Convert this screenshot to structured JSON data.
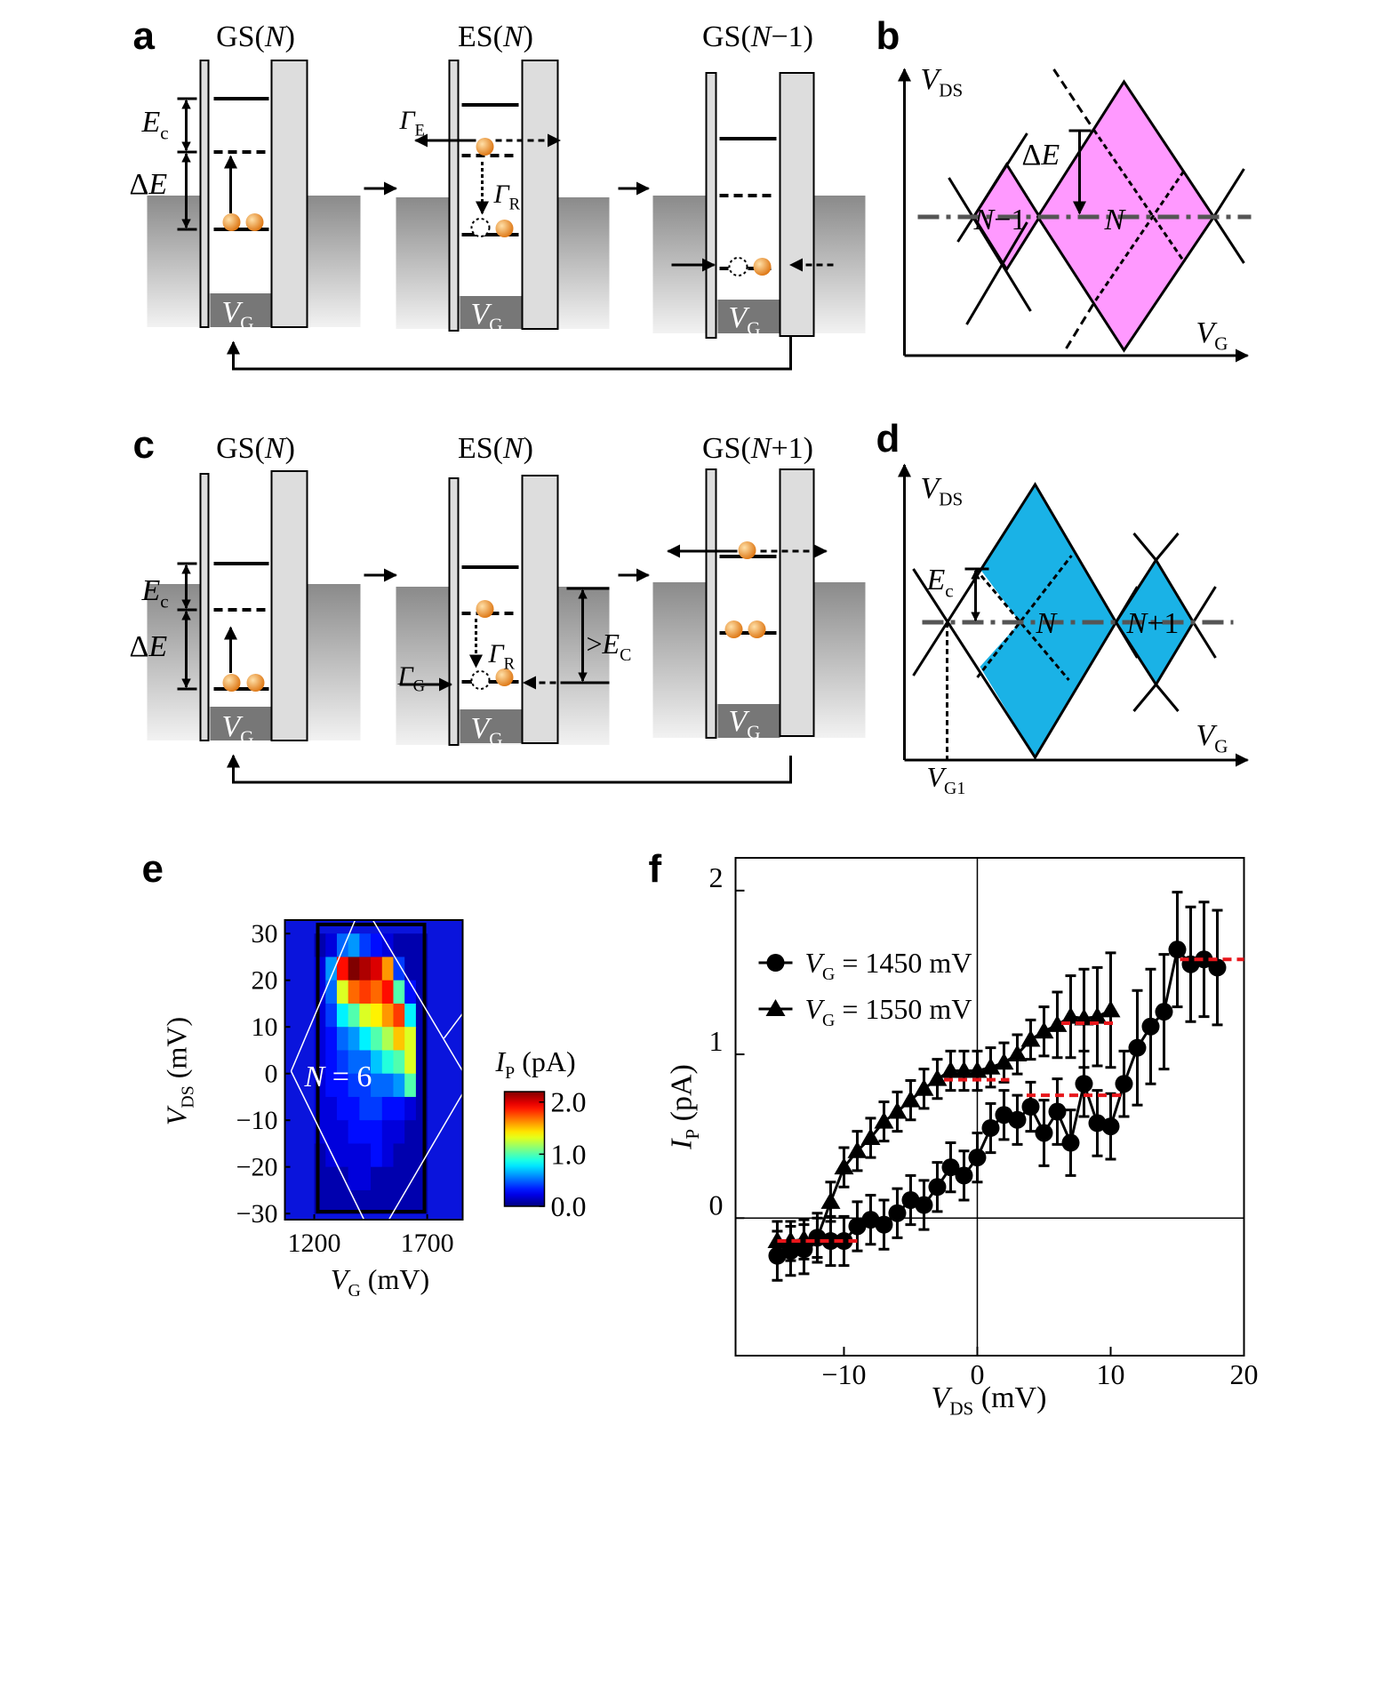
{
  "panel_a": {
    "label": "a",
    "states": [
      {
        "pre": "GS(",
        "it": "N",
        "post": ")"
      },
      {
        "pre": "ES(",
        "it": "N",
        "post": ")"
      },
      {
        "pre": "GS(",
        "it": "N",
        "post": "−1)"
      }
    ],
    "charging_energy": {
      "it": "E",
      "sub": "c"
    },
    "level_spacing": {
      "pre": "Δ",
      "it": "E"
    },
    "gamma_E": {
      "it": "Γ",
      "sub": "E"
    },
    "gamma_R": {
      "it": "Γ",
      "sub": "R"
    },
    "gate": {
      "it": "V",
      "sub": "G"
    }
  },
  "panel_b": {
    "label": "b",
    "y_axis": {
      "it": "V",
      "sub": "DS"
    },
    "x_axis": {
      "it": "V",
      "sub": "G"
    },
    "level_spacing": {
      "pre": "Δ",
      "it": "E"
    },
    "left_state": {
      "it": "N",
      "post": "−1"
    },
    "right_state": {
      "it": "N"
    },
    "fill": "#ff99ff"
  },
  "panel_c": {
    "label": "c",
    "states": [
      {
        "pre": "GS(",
        "it": "N",
        "post": ")"
      },
      {
        "pre": "ES(",
        "it": "N",
        "post": ")"
      },
      {
        "pre": "GS(",
        "it": "N",
        "post": "+1)"
      }
    ],
    "charging_energy": {
      "it": "E",
      "sub": "c"
    },
    "level_spacing": {
      "pre": "Δ",
      "it": "E"
    },
    "gamma_G": {
      "it": "Γ",
      "sub": "G"
    },
    "gamma_R": {
      "it": "Γ",
      "sub": "R"
    },
    "threshold": {
      "pre": ">",
      "it": "E",
      "sub": "C"
    },
    "gate": {
      "it": "V",
      "sub": "G"
    }
  },
  "panel_d": {
    "label": "d",
    "y_axis": {
      "it": "V",
      "sub": "DS"
    },
    "x_axis": {
      "it": "V",
      "sub": "G"
    },
    "charging_energy": {
      "it": "E",
      "sub": "c"
    },
    "left_state": {
      "it": "N"
    },
    "right_state": {
      "it": "N",
      "post": "+1"
    },
    "gate_value": {
      "it": "V",
      "sub": "G1"
    },
    "fill": "#1ab2e6"
  },
  "chart_data": [
    {
      "type": "heatmap",
      "label": "e",
      "x_label": {
        "it": "V",
        "sub": "G",
        "post": " (mV)"
      },
      "y_label": {
        "it": "V",
        "sub": "DS",
        "post": " (mV)"
      },
      "xlim": [
        1070,
        1857
      ],
      "ylim": [
        -31.3,
        32.9
      ],
      "xticks": [
        1200,
        1700
      ],
      "yticks": [
        30,
        20,
        10,
        0,
        {
          "value": -10,
          "label": "−10"
        },
        {
          "value": -20,
          "label": "−20"
        },
        {
          "value": -30,
          "label": "−30"
        }
      ],
      "x_edges": [
        1200,
        1250,
        1300,
        1350,
        1400,
        1450,
        1500,
        1550,
        1600,
        1650,
        1700
      ],
      "y_edges": [
        30,
        25,
        20,
        15,
        10,
        5,
        0,
        -5,
        -10,
        -15,
        -20,
        -25,
        -30
      ],
      "z": [
        [
          0.1,
          0.2,
          0.5,
          0.6,
          0.4,
          0.3,
          0.2,
          0.1,
          0.1,
          0.1
        ],
        [
          0.2,
          0.6,
          1.9,
          2.2,
          2.1,
          2.0,
          1.6,
          0.4,
          0.1,
          0.1
        ],
        [
          0.2,
          0.5,
          1.3,
          1.7,
          1.8,
          1.7,
          1.9,
          1.0,
          0.3,
          0.1
        ],
        [
          0.2,
          0.4,
          0.8,
          1.0,
          1.3,
          1.4,
          1.6,
          1.8,
          0.8,
          0.1
        ],
        [
          0.2,
          0.3,
          0.5,
          0.6,
          0.8,
          1.0,
          1.2,
          1.5,
          1.3,
          0.1
        ],
        [
          0.2,
          0.3,
          0.4,
          0.5,
          0.5,
          0.7,
          0.9,
          1.0,
          1.3,
          0.1
        ],
        [
          0.2,
          0.3,
          0.3,
          0.4,
          0.4,
          0.5,
          0.5,
          0.6,
          1.0,
          0.1
        ],
        [
          0.2,
          0.2,
          0.3,
          0.3,
          0.4,
          0.4,
          0.3,
          0.3,
          0.2,
          0.1
        ],
        [
          0.2,
          0.2,
          0.2,
          0.3,
          0.3,
          0.3,
          0.2,
          0.2,
          0.1,
          0.1
        ],
        [
          0.1,
          0.2,
          0.2,
          0.2,
          0.2,
          0.3,
          0.2,
          0.1,
          0.1,
          0.1
        ],
        [
          0.1,
          0.1,
          0.1,
          0.2,
          0.2,
          0.1,
          0.1,
          0.1,
          0.1,
          0.1
        ],
        [
          0.1,
          0.1,
          0.1,
          0.1,
          0.1,
          0.1,
          0.1,
          0.1,
          0.1,
          0.1
        ]
      ],
      "background": "#0a14dc",
      "annotation": {
        "it": "N",
        "post": " = 6"
      },
      "colorbar": {
        "label": {
          "it": "I",
          "sub": "P",
          "post": " (pA)"
        },
        "lim": [
          0,
          2.2
        ],
        "colormap": "jet",
        "ticks": [
          {
            "value": 0,
            "label": "0.0"
          },
          {
            "value": 1,
            "label": "1.0"
          },
          {
            "value": 2,
            "label": "2.0"
          }
        ]
      }
    },
    {
      "type": "scatter",
      "label": "f",
      "x_label": {
        "it": "V",
        "sub": "DS",
        "post": " (mV)"
      },
      "y_label": {
        "it": "I",
        "sub": "P",
        "post": " (pA)"
      },
      "xlim": [
        -18.13,
        20
      ],
      "ylim": [
        -0.84,
        2.2
      ],
      "xticks": [
        {
          "value": -10,
          "label": "−10"
        },
        0,
        10,
        20
      ],
      "yticks": [
        0,
        1,
        2
      ],
      "zero_lines": true,
      "series": [
        {
          "name": {
            "it": "V",
            "sub": "G",
            "post": " = 1450 mV"
          },
          "marker": "circle",
          "color": "#000000",
          "x": [
            -15,
            -14,
            -13,
            -12,
            -11,
            -10,
            -9,
            -8,
            -7,
            -6,
            -5,
            -4,
            -3,
            -2,
            -1,
            0,
            1,
            2,
            3,
            4,
            5,
            6,
            7,
            8,
            9,
            10,
            11,
            12,
            13,
            14,
            15,
            16,
            17,
            18
          ],
          "values": [
            -0.23,
            -0.2,
            -0.19,
            -0.12,
            -0.14,
            -0.14,
            -0.05,
            -0.01,
            -0.04,
            0.03,
            0.11,
            0.08,
            0.19,
            0.31,
            0.26,
            0.37,
            0.55,
            0.63,
            0.6,
            0.68,
            0.52,
            0.65,
            0.46,
            0.82,
            0.58,
            0.56,
            0.82,
            1.04,
            1.17,
            1.26,
            1.64,
            1.55,
            1.58,
            1.53
          ],
          "errors": [
            0.15,
            0.15,
            0.15,
            0.15,
            0.15,
            0.15,
            0.15,
            0.15,
            0.15,
            0.15,
            0.15,
            0.15,
            0.15,
            0.15,
            0.15,
            0.15,
            0.15,
            0.15,
            0.15,
            0.15,
            0.2,
            0.2,
            0.2,
            0.2,
            0.2,
            0.2,
            0.2,
            0.35,
            0.35,
            0.35,
            0.35,
            0.35,
            0.35,
            0.35
          ]
        },
        {
          "name": {
            "it": "V",
            "sub": "G",
            "post": " = 1550 mV"
          },
          "marker": "triangle",
          "color": "#000000",
          "x": [
            -15,
            -14,
            -13,
            -12,
            -11,
            -10,
            -9,
            -8,
            -7,
            -6,
            -5,
            -4,
            -3,
            -2,
            -1,
            0,
            1,
            2,
            3,
            4,
            5,
            6,
            7,
            8,
            9,
            10
          ],
          "values": [
            -0.14,
            -0.14,
            -0.13,
            -0.12,
            0.1,
            0.31,
            0.41,
            0.49,
            0.59,
            0.65,
            0.72,
            0.79,
            0.85,
            0.9,
            0.9,
            0.9,
            0.92,
            0.95,
            1.0,
            1.09,
            1.14,
            1.18,
            1.23,
            1.22,
            1.23,
            1.27
          ],
          "errors": [
            0.12,
            0.12,
            0.12,
            0.12,
            0.12,
            0.12,
            0.12,
            0.12,
            0.12,
            0.12,
            0.12,
            0.12,
            0.12,
            0.12,
            0.12,
            0.12,
            0.12,
            0.12,
            0.12,
            0.12,
            0.15,
            0.2,
            0.25,
            0.3,
            0.3,
            0.35
          ]
        }
      ],
      "reference_lines": {
        "color": "#e8161b",
        "segments": [
          {
            "x": [
              -15,
              -9
            ],
            "y": -0.14
          },
          {
            "x": [
              -2.5,
              2.4
            ],
            "y": 0.845
          },
          {
            "x": [
              3.7,
              10.9
            ],
            "y": 0.75
          },
          {
            "x": [
              6.3,
              10.4
            ],
            "y": 1.19
          },
          {
            "x": [
              15.2,
              20
            ],
            "y": 1.58
          }
        ]
      }
    }
  ]
}
